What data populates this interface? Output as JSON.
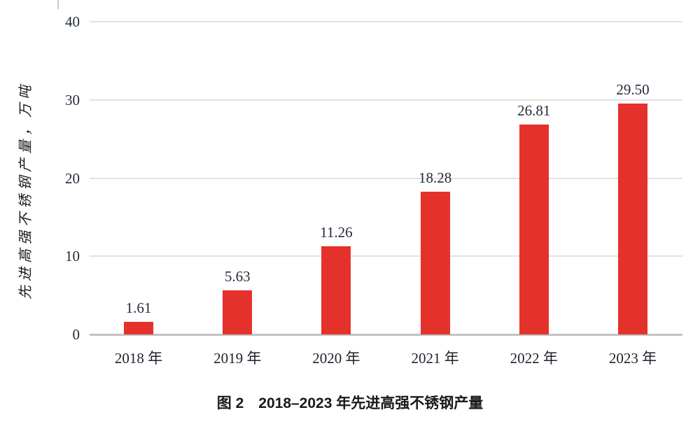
{
  "chart_data": {
    "type": "bar",
    "title": "图 2　2018–2023 年先进高强不锈钢产量",
    "categories": [
      "2018 年",
      "2019 年",
      "2020 年",
      "2021 年",
      "2022 年",
      "2023 年"
    ],
    "values": [
      1.61,
      5.63,
      11.26,
      18.28,
      26.81,
      29.5
    ],
    "value_labels": [
      "1.61",
      "5.63",
      "11.26",
      "18.28",
      "26.81",
      "29.50"
    ],
    "xlabel": "",
    "ylabel": "先进高强不锈钢产量，万吨",
    "yticks": [
      0,
      10,
      20,
      30,
      40
    ],
    "ylim": [
      0,
      40
    ],
    "grid": true,
    "legend": "none"
  },
  "caption": "图 2　2018–2023 年先进高强不锈钢产量",
  "colors": {
    "bar": "#e5312b",
    "gridline": "#e2e2e2",
    "baseline": "#c3c3c3",
    "tick_text": "#242b3a",
    "xlabel_text": "#1e222b",
    "caption_text": "#1a1a1a",
    "background": "#ffffff"
  }
}
